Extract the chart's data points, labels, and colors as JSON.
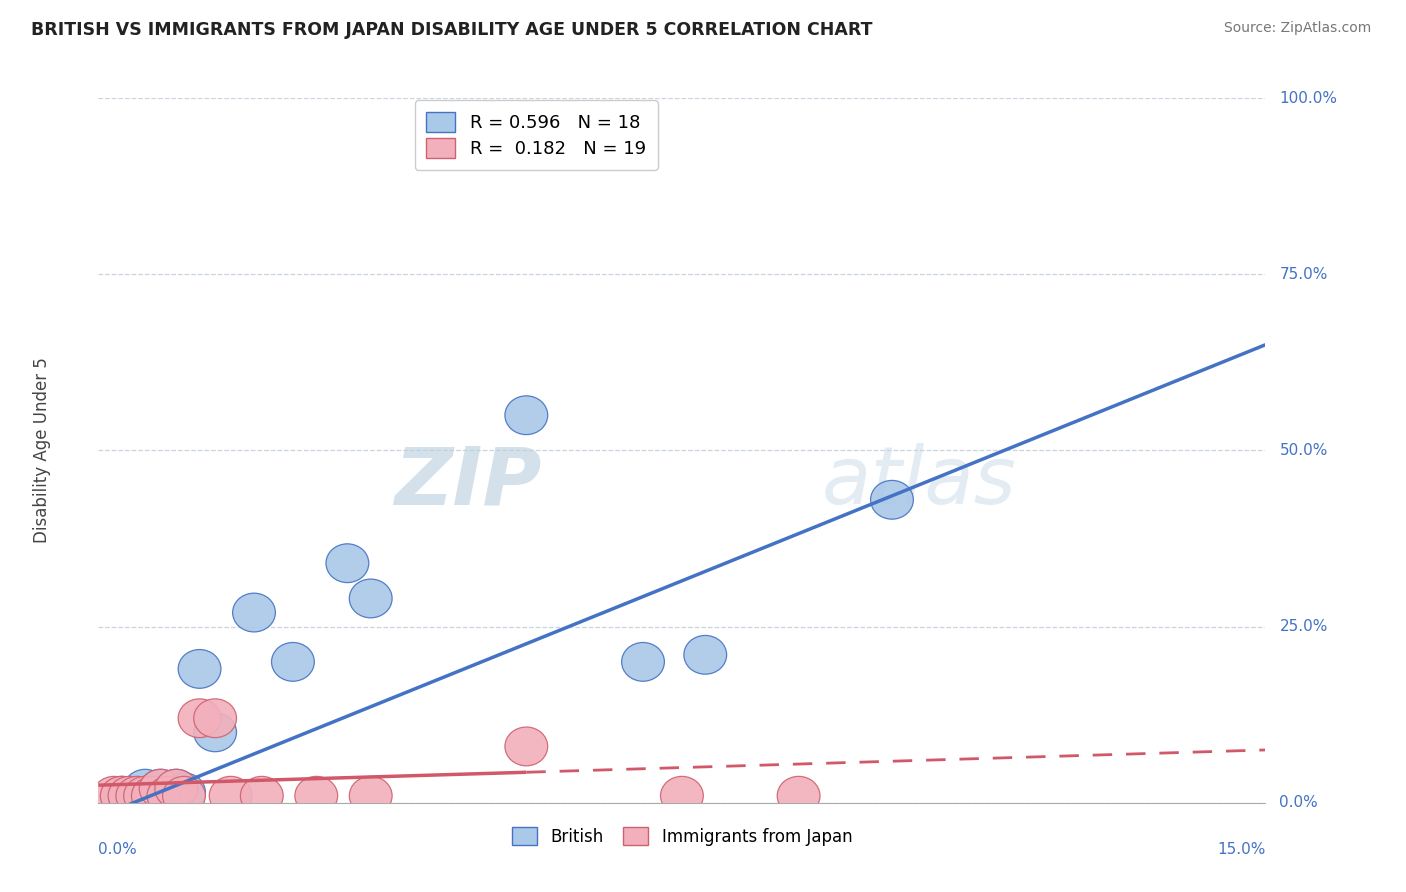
{
  "title": "BRITISH VS IMMIGRANTS FROM JAPAN DISABILITY AGE UNDER 5 CORRELATION CHART",
  "source": "Source: ZipAtlas.com",
  "ylabel": "Disability Age Under 5",
  "ytick_labels": [
    "0.0%",
    "25.0%",
    "50.0%",
    "75.0%",
    "100.0%"
  ],
  "ytick_vals": [
    0,
    25,
    50,
    75,
    100
  ],
  "xtick_left": "0.0%",
  "xtick_right": "15.0%",
  "xmin": 0.0,
  "xmax": 15.0,
  "ymin": 0.0,
  "ymax": 100.0,
  "legend_r_british": "0.596",
  "legend_n_british": "18",
  "legend_r_japan": "0.182",
  "legend_n_japan": "19",
  "british_face": "#aac8e8",
  "british_edge": "#4472c4",
  "japan_face": "#f2b0bc",
  "japan_edge": "#d06070",
  "british_line": "#4472c4",
  "japan_line": "#d05868",
  "watermark_zip": "ZIP",
  "watermark_atlas": "atlas",
  "british_x": [
    0.3,
    0.5,
    0.6,
    0.7,
    0.8,
    0.9,
    1.0,
    1.1,
    1.3,
    1.5,
    2.0,
    2.5,
    3.2,
    3.5,
    5.5,
    7.0,
    7.8,
    10.2
  ],
  "british_y": [
    1,
    1,
    2,
    1,
    2,
    1,
    2,
    1.5,
    19,
    10,
    27,
    20,
    34,
    29,
    55,
    20,
    21,
    43
  ],
  "japan_x": [
    0.2,
    0.3,
    0.4,
    0.5,
    0.6,
    0.7,
    0.8,
    0.9,
    1.0,
    1.1,
    1.3,
    1.5,
    1.7,
    2.1,
    2.8,
    3.5,
    5.5,
    7.5,
    9.0
  ],
  "japan_y": [
    1,
    1,
    1,
    1,
    1,
    1,
    2,
    1,
    2,
    1,
    12,
    12,
    1,
    1,
    1,
    1,
    8,
    1,
    1
  ],
  "b_line_x0": 0.0,
  "b_line_y0": -2.0,
  "b_line_x1": 15.0,
  "b_line_y1": 65.0,
  "j_line_x0": 0.0,
  "j_line_y0": 2.5,
  "j_line_x1": 15.0,
  "j_line_y1": 7.5,
  "j_solid_end": 5.5
}
